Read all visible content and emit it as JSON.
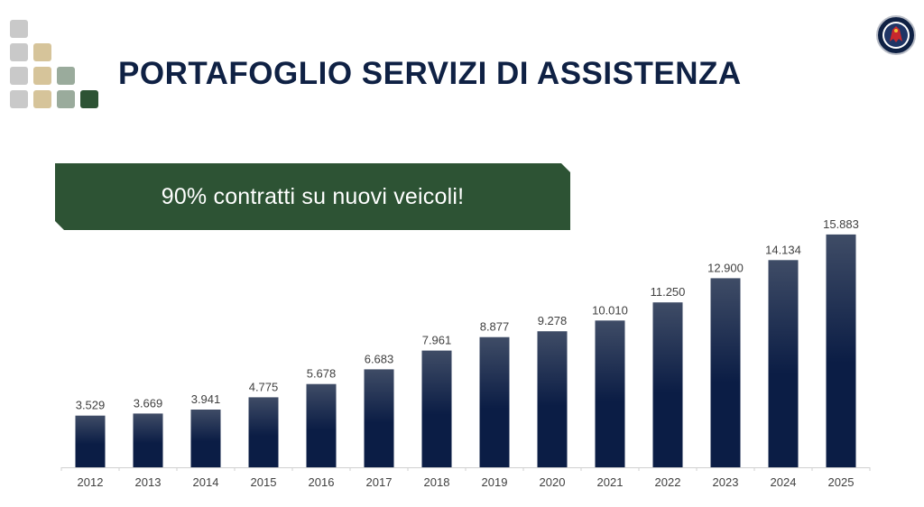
{
  "header": {
    "title": "PORTAFOGLIO SERVIZI DI ASSISTENZA"
  },
  "banner": {
    "text": "90% contratti su nuovi veicoli!"
  },
  "colors": {
    "title": "#0f2144",
    "banner": "#2d5334",
    "bar_top": "#3f4c66",
    "bar_bottom": "#0b1d45",
    "label": "#404040",
    "axis": "#d0d0d0",
    "logo_gray": "#c9c9c9",
    "logo_tan": "#d6c49a",
    "logo_sage": "#9aab9c",
    "logo_green": "#2d5334"
  },
  "icons": {
    "logo": "square-mosaic-logo-icon",
    "badge": "griffin-emblem-icon"
  },
  "chart_data": {
    "type": "bar",
    "categories": [
      "2012",
      "2013",
      "2014",
      "2015",
      "2016",
      "2017",
      "2018",
      "2019",
      "2020",
      "2021",
      "2022",
      "2023",
      "2024",
      "2025"
    ],
    "values": [
      3529,
      3669,
      3941,
      4775,
      5678,
      6683,
      7961,
      8877,
      9278,
      10010,
      11250,
      12900,
      14134,
      15883
    ],
    "data_labels": [
      "3.529",
      "3.669",
      "3.941",
      "4.775",
      "5.678",
      "6.683",
      "7.961",
      "8.877",
      "9.278",
      "10.010",
      "11.250",
      "12.900",
      "14.134",
      "15.883"
    ],
    "title": "",
    "xlabel": "",
    "ylabel": "",
    "ylim": [
      0,
      16000
    ],
    "grid": false,
    "legend": "none"
  }
}
